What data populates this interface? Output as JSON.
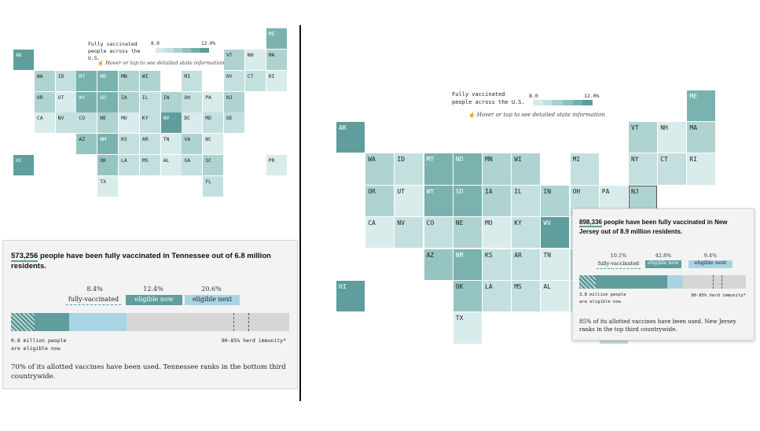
{
  "legend": {
    "title_line1": "Fully vaccinated",
    "title_line2": "people across the U.S.",
    "min_label": "8.0",
    "max_label": "12.0%",
    "ramp_colors": [
      "#d5eaea",
      "#c1dfde",
      "#a8d0ce",
      "#8fc0bd",
      "#73aeab",
      "#5a9d9a"
    ],
    "hint": "Hover or tap to see detailed state information"
  },
  "colors": {
    "c1": "#d9ecec",
    "c2": "#c3e0df",
    "c3": "#aed3d1",
    "c4": "#96c4c1",
    "c5": "#79b2af",
    "c6": "#5f9e9c"
  },
  "states": [
    {
      "abbr": "AK",
      "shade": "c6"
    },
    {
      "abbr": "ME",
      "shade": "c5"
    },
    {
      "abbr": "VT",
      "shade": "c3"
    },
    {
      "abbr": "NH",
      "shade": "c1"
    },
    {
      "abbr": "MA",
      "shade": "c3"
    },
    {
      "abbr": "WA",
      "shade": "c3"
    },
    {
      "abbr": "ID",
      "shade": "c2"
    },
    {
      "abbr": "MT",
      "shade": "c5"
    },
    {
      "abbr": "ND",
      "shade": "c5"
    },
    {
      "abbr": "MN",
      "shade": "c3"
    },
    {
      "abbr": "WI",
      "shade": "c3"
    },
    {
      "abbr": "MI",
      "shade": "c2"
    },
    {
      "abbr": "NY",
      "shade": "c2"
    },
    {
      "abbr": "CT",
      "shade": "c2"
    },
    {
      "abbr": "RI",
      "shade": "c1"
    },
    {
      "abbr": "OR",
      "shade": "c3"
    },
    {
      "abbr": "UT",
      "shade": "c1"
    },
    {
      "abbr": "WY",
      "shade": "c5"
    },
    {
      "abbr": "SD",
      "shade": "c5"
    },
    {
      "abbr": "IA",
      "shade": "c3"
    },
    {
      "abbr": "IL",
      "shade": "c2"
    },
    {
      "abbr": "IN",
      "shade": "c3"
    },
    {
      "abbr": "OH",
      "shade": "c2"
    },
    {
      "abbr": "PA",
      "shade": "c1"
    },
    {
      "abbr": "NJ",
      "shade": "c3"
    },
    {
      "abbr": "CA",
      "shade": "c1"
    },
    {
      "abbr": "NV",
      "shade": "c2"
    },
    {
      "abbr": "CO",
      "shade": "c2"
    },
    {
      "abbr": "NE",
      "shade": "c3"
    },
    {
      "abbr": "MO",
      "shade": "c1"
    },
    {
      "abbr": "KY",
      "shade": "c2"
    },
    {
      "abbr": "WV",
      "shade": "c6"
    },
    {
      "abbr": "DC",
      "shade": "c1"
    },
    {
      "abbr": "MD",
      "shade": "c2"
    },
    {
      "abbr": "DE",
      "shade": "c2"
    },
    {
      "abbr": "AZ",
      "shade": "c4"
    },
    {
      "abbr": "NM",
      "shade": "c5"
    },
    {
      "abbr": "KS",
      "shade": "c2"
    },
    {
      "abbr": "AR",
      "shade": "c2"
    },
    {
      "abbr": "TN",
      "shade": "c1"
    },
    {
      "abbr": "VA",
      "shade": "c3"
    },
    {
      "abbr": "NC",
      "shade": "c1"
    },
    {
      "abbr": "HI",
      "shade": "c6"
    },
    {
      "abbr": "OK",
      "shade": "c4"
    },
    {
      "abbr": "LA",
      "shade": "c2"
    },
    {
      "abbr": "MS",
      "shade": "c2"
    },
    {
      "abbr": "AL",
      "shade": "c1"
    },
    {
      "abbr": "GA",
      "shade": "c2"
    },
    {
      "abbr": "SC",
      "shade": "c3"
    },
    {
      "abbr": "PR",
      "shade": "c1"
    },
    {
      "abbr": "TX",
      "shade": "c1"
    },
    {
      "abbr": "FL",
      "shade": "c2"
    }
  ],
  "left_info": {
    "headline_number": "573,256",
    "headline_rest": " people have been fully vaccinated in Tennessee out of 6.8 million residents.",
    "pct_fully": "8.4%",
    "pct_now": "12.4%",
    "pct_next": "20.6%",
    "label_fully": "fully-vaccinated",
    "label_now": "eligible now",
    "label_next": "eligible next",
    "frac_fully": 0.084,
    "frac_now": 0.124,
    "frac_next": 0.206,
    "note_left_1": "0.8 million people",
    "note_left_2": "are eligible now",
    "note_right": "80-85% herd immunity*",
    "paragraph": "70% of its allotted vaccines have been used. Tennessee ranks in the bottom third countrywide."
  },
  "right_info": {
    "headline_number": "898,336",
    "headline_rest": " people have been fully vaccinated in New Jersey out of 8.9 million residents.",
    "pct_fully": "10.1%",
    "pct_now": "42.8%",
    "pct_next": "9.4%",
    "label_fully": "fully-vaccinated",
    "label_now": "eligible now",
    "label_next": "eligible next",
    "frac_fully": 0.101,
    "frac_now": 0.428,
    "frac_next": 0.094,
    "note_left_1": "3.8 million people",
    "note_left_2": "are eligible now",
    "note_right": "80-85% herd immunity*",
    "paragraph": "85% of its allotted vaccines have been used. New Jersey ranks in the top third countrywide."
  }
}
